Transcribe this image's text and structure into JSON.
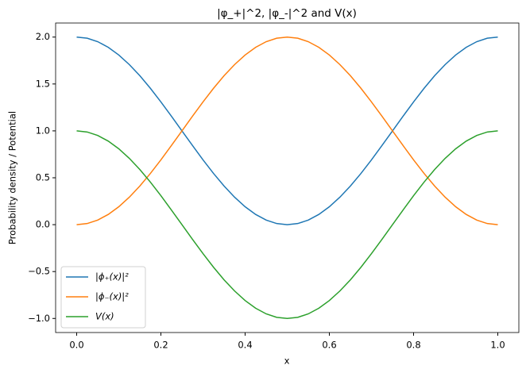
{
  "chart_data": {
    "type": "line",
    "title": "|φ_+|^2, |φ_-|^2 and V(x)",
    "xlabel": "x",
    "ylabel": "Probability density / Potential",
    "x": [
      0,
      0.025,
      0.05,
      0.075,
      0.1,
      0.125,
      0.15,
      0.175,
      0.2,
      0.225,
      0.25,
      0.275,
      0.3,
      0.325,
      0.35,
      0.375,
      0.4,
      0.425,
      0.45,
      0.475,
      0.5,
      0.525,
      0.55,
      0.575,
      0.6,
      0.625,
      0.65,
      0.675,
      0.7,
      0.725,
      0.75,
      0.775,
      0.8,
      0.825,
      0.85,
      0.875,
      0.9,
      0.925,
      0.95,
      0.975,
      1
    ],
    "series": [
      {
        "name": "|ϕ₊(x)|²",
        "color": "#1f77b4",
        "values": [
          2,
          1.988,
          1.951,
          1.891,
          1.809,
          1.707,
          1.588,
          1.454,
          1.309,
          1.156,
          1,
          0.844,
          0.691,
          0.546,
          0.412,
          0.293,
          0.191,
          0.109,
          0.049,
          0.012,
          0,
          0.012,
          0.049,
          0.109,
          0.191,
          0.293,
          0.412,
          0.546,
          0.691,
          0.844,
          1,
          1.156,
          1.309,
          1.454,
          1.588,
          1.707,
          1.809,
          1.891,
          1.951,
          1.988,
          2
        ]
      },
      {
        "name": "|ϕ₋(x)|²",
        "color": "#ff7f0e",
        "values": [
          0,
          0.012,
          0.049,
          0.109,
          0.191,
          0.293,
          0.412,
          0.546,
          0.691,
          0.844,
          1,
          1.156,
          1.309,
          1.454,
          1.588,
          1.707,
          1.809,
          1.891,
          1.951,
          1.988,
          2,
          1.988,
          1.951,
          1.891,
          1.809,
          1.707,
          1.588,
          1.454,
          1.309,
          1.156,
          1,
          0.844,
          0.691,
          0.546,
          0.412,
          0.293,
          0.191,
          0.109,
          0.049,
          0.012,
          0
        ]
      },
      {
        "name": "V(x)",
        "color": "#2ca02c",
        "values": [
          1,
          0.988,
          0.951,
          0.891,
          0.809,
          0.707,
          0.588,
          0.454,
          0.309,
          0.156,
          0,
          -0.156,
          -0.309,
          -0.454,
          -0.588,
          -0.707,
          -0.809,
          -0.891,
          -0.951,
          -0.988,
          -1,
          -0.988,
          -0.951,
          -0.891,
          -0.809,
          -0.707,
          -0.588,
          -0.454,
          -0.309,
          -0.156,
          0,
          0.156,
          0.309,
          0.454,
          0.588,
          0.707,
          0.809,
          0.891,
          0.951,
          0.988,
          1
        ]
      }
    ],
    "xlim": [
      -0.05,
      1.05
    ],
    "xticks": [
      {
        "value": 0,
        "label": "0.0"
      },
      0.2,
      0.4,
      0.6,
      0.8,
      {
        "value": 1,
        "label": "1.0"
      }
    ],
    "ylim": [
      -1.15,
      2.15
    ],
    "yticks": [
      {
        "value": -1,
        "label": "−1.0"
      },
      {
        "value": -0.5,
        "label": "−0.5"
      },
      {
        "value": 0,
        "label": "0.0"
      },
      0.5,
      {
        "value": 1,
        "label": "1.0"
      },
      1.5,
      {
        "value": 2,
        "label": "2.0"
      }
    ],
    "grid": false,
    "legend": "lower left"
  }
}
